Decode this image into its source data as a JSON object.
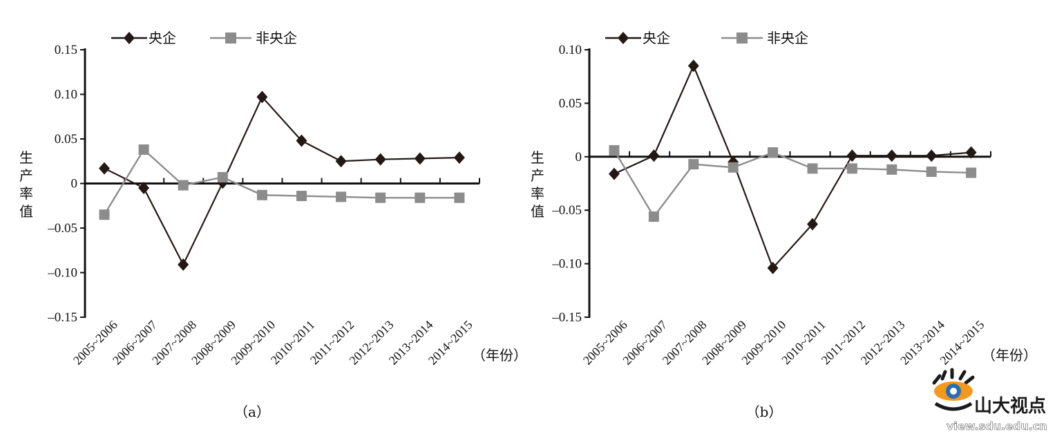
{
  "chart_data": [
    {
      "type": "line",
      "caption": "（a）",
      "ylabel": "生产率值",
      "xunit": "（年份）",
      "categories": [
        "2005-2006",
        "2006-2007",
        "2007-2008",
        "2008-2009",
        "2009-2010",
        "2010-2011",
        "2011-2012",
        "2012-2013",
        "2013-2014",
        "2014-2015"
      ],
      "yticks": [
        "0.15",
        "0.10",
        "0.05",
        "0",
        "-0.05",
        "-0.10",
        "-0.15"
      ],
      "ylim": [
        -0.15,
        0.15
      ],
      "series": [
        {
          "name": "央企",
          "marker": "diamond",
          "color": "#231815",
          "values": [
            0.017,
            -0.005,
            -0.091,
            0.001,
            0.097,
            0.048,
            0.025,
            0.027,
            0.028,
            0.029
          ]
        },
        {
          "name": "非央企",
          "marker": "square",
          "color": "#8c8c8c",
          "values": [
            -0.035,
            0.038,
            -0.002,
            0.007,
            -0.013,
            -0.014,
            -0.015,
            -0.016,
            -0.016,
            -0.016
          ]
        }
      ]
    },
    {
      "type": "line",
      "caption": "（b）",
      "ylabel": "生产率值",
      "xunit": "（年份）",
      "categories": [
        "2005-2006",
        "2006-2007",
        "2007-2008",
        "2008-2009",
        "2009-2010",
        "2010-2011",
        "2011-2012",
        "2012-2013",
        "2013-2014",
        "2014-2015"
      ],
      "yticks": [
        "0.10",
        "0.05",
        "0",
        "-0.05",
        "-0.10",
        "-0.15"
      ],
      "ylim": [
        -0.15,
        0.1
      ],
      "series": [
        {
          "name": "央企",
          "marker": "diamond",
          "color": "#231815",
          "values": [
            -0.016,
            0.001,
            0.085,
            -0.005,
            -0.104,
            -0.063,
            0.001,
            0.001,
            0.001,
            0.004
          ]
        },
        {
          "name": "非央企",
          "marker": "square",
          "color": "#8c8c8c",
          "values": [
            0.006,
            -0.056,
            -0.007,
            -0.01,
            0.004,
            -0.011,
            -0.011,
            -0.012,
            -0.014,
            -0.015
          ]
        }
      ]
    }
  ],
  "watermark": {
    "title": "山大视点",
    "url": "view.sdu.edu.cn",
    "colors": {
      "orange": "#f39a1e",
      "blue": "#2a6db5",
      "dark": "#1a1a1a"
    }
  }
}
